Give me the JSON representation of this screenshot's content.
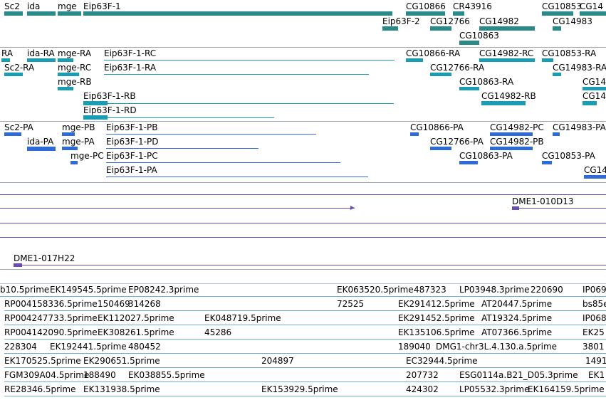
{
  "tracks": {
    "genes": {
      "color": "#2a8a8a",
      "labels": [
        "Sc2",
        "ida",
        "mge",
        "Eip63F-1",
        "CG10866",
        "CR43916",
        "CG10853",
        "CG14",
        "Eip63F-2",
        "CG12766",
        "CG14982",
        "CG14983",
        "CG10863"
      ]
    },
    "transcripts": {
      "color": "#1a9cb3",
      "labels": [
        "RA",
        "ida-RA",
        "mge-RA",
        "Eip63F-1-RC",
        "CG10866-RA",
        "CG14982-RC",
        "CG10853-RA",
        "Sc2-RA",
        "mge-RC",
        "Eip63F-1-RA",
        "CG12766-RA",
        "CG14983-RA",
        "mge-RB",
        "CG10863-RA",
        "CG14",
        "Eip63F-1-RB",
        "CG14982-RB",
        "CG14",
        "Eip63F-1-RD"
      ]
    },
    "proteins": {
      "color": "#2f6bd6",
      "labels": [
        "Sc2-PA",
        "mge-PB",
        "Eip63F-1-PB",
        "CG10866-PA",
        "CG14982-PC",
        "CG14983-PA",
        "ida-PA",
        "mge-PA",
        "Eip63F-1-PD",
        "CG12766-PA",
        "CG14982-PB",
        "mge-PC",
        "Eip63F-1-PC",
        "CG10863-PA",
        "CG10853-PA",
        "Eip63F-1-PA",
        "CG14"
      ]
    },
    "clones": {
      "color": "#6a4bb0",
      "labels": [
        "DME1-010D13",
        "DME1-017H22"
      ]
    },
    "ests": {
      "color": "#6aaed6",
      "labels": [
        "b10.5prime",
        "EK149545.5prime",
        "EP08242.3prime",
        "EK063520.5prime",
        "487323",
        "LP03948.3prime",
        "220690",
        "IP069",
        "RP004158336.5prime",
        "150469",
        "314268",
        "72525",
        "EK291412.5prime",
        "AT20447.5prime",
        "bs85e",
        "RP004247733.5prime",
        "EK112027.5prime",
        "EK048719.5prime",
        "EK291452.5prime",
        "AT19324.5prime",
        "IP068",
        "RP004142090.5prime",
        "EK308261.5prime",
        "45286",
        "EK135106.5prime",
        "AT07366.5prime",
        "EK25",
        "228304",
        "EK192441.5prime",
        "480452",
        "189040",
        "DMG1-chr3L.4.130.a.5prime",
        "3801",
        "EK170525.5prime",
        "EK290651.5prime",
        "204897",
        "EC32944.5prime",
        "1491",
        "FGM309A04.5prime",
        "188490",
        "EK038855.5prime",
        "207732",
        "ESG0114a.B21_D05.3prime",
        "EK1",
        "RE28346.5prime",
        "EK131938.5prime",
        "EK153929.5prime",
        "424302",
        "LP05532.3prime",
        "EK164159.5prime"
      ]
    }
  }
}
